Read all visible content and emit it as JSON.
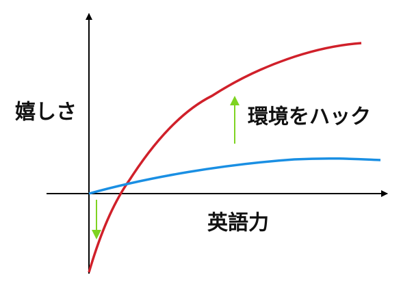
{
  "y_axis_label": "嬉しさ",
  "x_axis_label": "英語力",
  "annotation": "環境をハック"
}
